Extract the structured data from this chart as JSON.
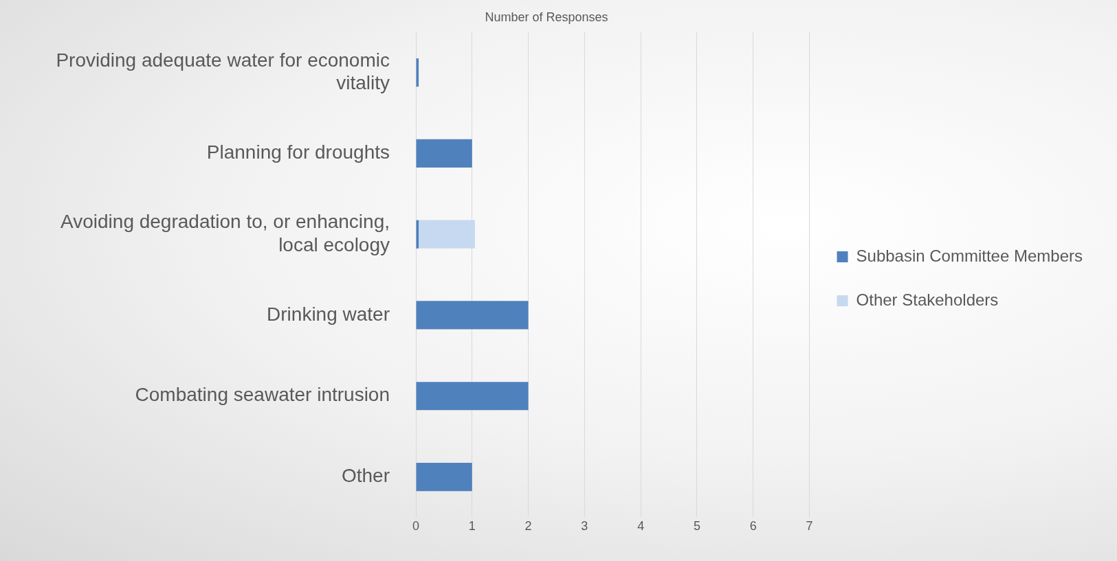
{
  "chart_data": {
    "type": "bar",
    "orientation": "horizontal",
    "stacked": true,
    "title": "Number of Responses",
    "categories": [
      "Providing adequate water for economic vitality",
      "Planning for droughts",
      "Avoiding degradation to, or enhancing, local ecology",
      "Drinking water",
      "Combating seawater intrusion",
      "Other"
    ],
    "series": [
      {
        "name": "Subbasin Committee Members",
        "color": "#4f81bd",
        "values": [
          0.05,
          1,
          0.05,
          2,
          2,
          1
        ]
      },
      {
        "name": "Other Stakeholders",
        "color": "#c6d9f0",
        "values": [
          null,
          null,
          1,
          null,
          null,
          null
        ]
      }
    ],
    "xlim": [
      0,
      7
    ],
    "xticks": [
      0,
      1,
      2,
      3,
      4,
      5,
      6,
      7
    ],
    "grid": "x",
    "legend": "right"
  }
}
